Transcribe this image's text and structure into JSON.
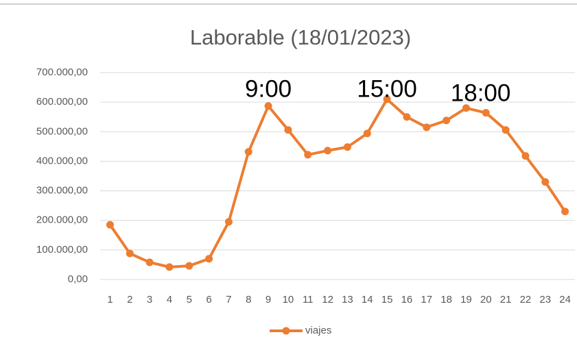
{
  "chart_data": {
    "type": "line",
    "title": "Laborable (18/01/2023)",
    "categories": [
      1,
      2,
      3,
      4,
      5,
      6,
      7,
      8,
      9,
      10,
      11,
      12,
      13,
      14,
      15,
      16,
      17,
      18,
      19,
      20,
      21,
      22,
      23,
      24
    ],
    "series": [
      {
        "name": "viajes",
        "color": "#ed7d31",
        "values": [
          185000,
          88000,
          58000,
          42000,
          46000,
          70000,
          195000,
          432000,
          587000,
          506000,
          422000,
          436000,
          448000,
          494000,
          610000,
          550000,
          515000,
          538000,
          580000,
          564000,
          506000,
          418000,
          330000,
          230000
        ]
      }
    ],
    "ylim": [
      0,
      700000
    ],
    "yticks": [
      {
        "value": 0,
        "label": "0,00"
      },
      {
        "value": 100000,
        "label": "100.000,00"
      },
      {
        "value": 200000,
        "label": "200.000,00"
      },
      {
        "value": 300000,
        "label": "300.000,00"
      },
      {
        "value": 400000,
        "label": "400.000,00"
      },
      {
        "value": 500000,
        "label": "500.000,00"
      },
      {
        "value": 600000,
        "label": "600.000,00"
      },
      {
        "value": 700000,
        "label": "700.000,00"
      }
    ],
    "grid": true,
    "legend": "bottom",
    "annotations": [
      {
        "text": "9:00",
        "at": 9
      },
      {
        "text": "15:00",
        "at": 15
      },
      {
        "text": "18:00",
        "at": 18
      }
    ]
  }
}
